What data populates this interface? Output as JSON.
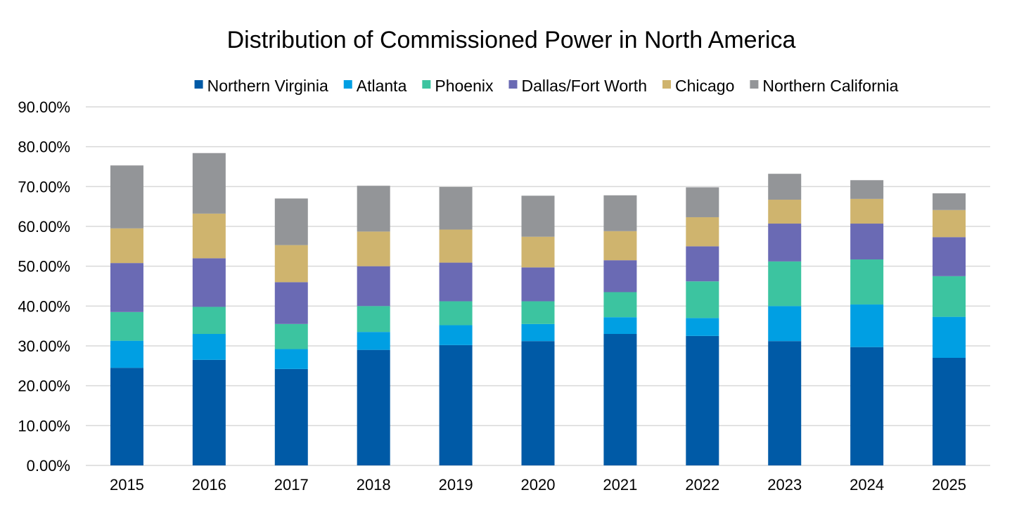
{
  "chart_data": {
    "type": "bar",
    "stacked": true,
    "title": "Distribution of Commissioned Power in North America",
    "xlabel": "",
    "ylabel": "",
    "ylim": [
      0,
      0.9
    ],
    "yticks": [
      "0.00%",
      "10.00%",
      "20.00%",
      "30.00%",
      "40.00%",
      "50.00%",
      "60.00%",
      "70.00%",
      "80.00%",
      "90.00%"
    ],
    "grid": true,
    "legend_position": "top",
    "categories": [
      "2015",
      "2016",
      "2017",
      "2018",
      "2019",
      "2020",
      "2021",
      "2022",
      "2023",
      "2024",
      "2025"
    ],
    "series": [
      {
        "name": "Northern Virginia",
        "color": "#005aa6",
        "values": [
          0.245,
          0.265,
          0.242,
          0.29,
          0.302,
          0.312,
          0.33,
          0.325,
          0.312,
          0.297,
          0.27
        ]
      },
      {
        "name": "Atlanta",
        "color": "#009fe3",
        "values": [
          0.068,
          0.065,
          0.05,
          0.045,
          0.05,
          0.043,
          0.042,
          0.045,
          0.088,
          0.107,
          0.103
        ]
      },
      {
        "name": "Phoenix",
        "color": "#3cc4a0",
        "values": [
          0.072,
          0.068,
          0.063,
          0.065,
          0.06,
          0.057,
          0.063,
          0.092,
          0.112,
          0.113,
          0.102
        ]
      },
      {
        "name": "Dallas/Fort Worth",
        "color": "#6a6ab4",
        "values": [
          0.123,
          0.122,
          0.105,
          0.1,
          0.097,
          0.085,
          0.08,
          0.088,
          0.095,
          0.09,
          0.098
        ]
      },
      {
        "name": "Chicago",
        "color": "#cfb46e",
        "values": [
          0.087,
          0.112,
          0.093,
          0.087,
          0.083,
          0.077,
          0.073,
          0.073,
          0.06,
          0.062,
          0.068
        ]
      },
      {
        "name": "Northern California",
        "color": "#939598",
        "values": [
          0.158,
          0.152,
          0.117,
          0.115,
          0.107,
          0.103,
          0.09,
          0.075,
          0.065,
          0.047,
          0.042
        ]
      }
    ]
  }
}
